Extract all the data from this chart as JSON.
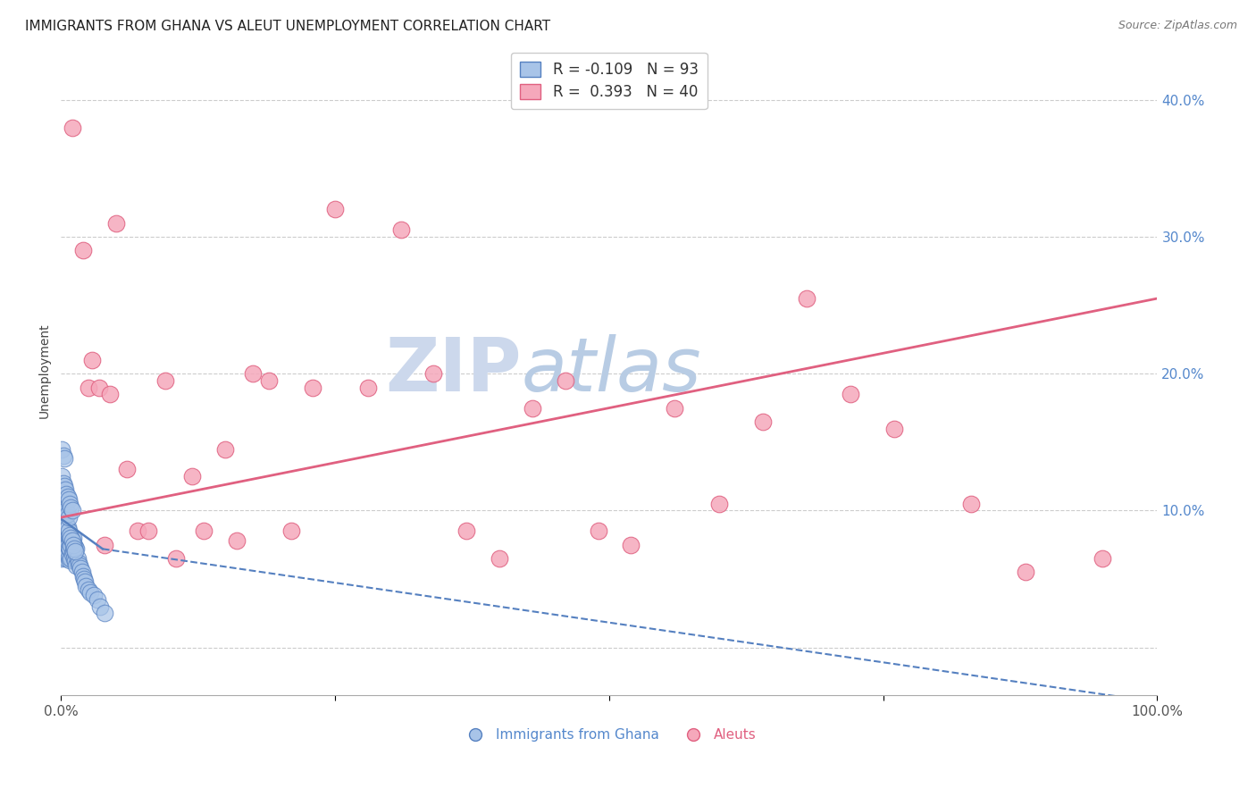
{
  "title": "IMMIGRANTS FROM GHANA VS ALEUT UNEMPLOYMENT CORRELATION CHART",
  "source": "Source: ZipAtlas.com",
  "ylabel": "Unemployment",
  "ytick_values": [
    0.0,
    0.1,
    0.2,
    0.3,
    0.4
  ],
  "xlim": [
    0.0,
    1.0
  ],
  "ylim": [
    -0.035,
    0.44
  ],
  "blue_color": "#a8c4e8",
  "pink_color": "#f5a8bb",
  "blue_edge_color": "#5580c0",
  "pink_edge_color": "#e06080",
  "grid_color": "#cccccc",
  "watermark_color": "#d8e8f5",
  "blue_scatter_x": [
    0.001,
    0.001,
    0.001,
    0.001,
    0.001,
    0.002,
    0.002,
    0.002,
    0.002,
    0.002,
    0.002,
    0.003,
    0.003,
    0.003,
    0.003,
    0.003,
    0.004,
    0.004,
    0.004,
    0.004,
    0.005,
    0.005,
    0.005,
    0.005,
    0.006,
    0.006,
    0.006,
    0.007,
    0.007,
    0.007,
    0.008,
    0.008,
    0.008,
    0.009,
    0.009,
    0.01,
    0.01,
    0.011,
    0.011,
    0.012,
    0.012,
    0.013,
    0.013,
    0.014,
    0.014,
    0.015,
    0.016,
    0.017,
    0.018,
    0.019,
    0.02,
    0.021,
    0.022,
    0.023,
    0.025,
    0.027,
    0.03,
    0.033,
    0.036,
    0.04,
    0.001,
    0.001,
    0.002,
    0.002,
    0.003,
    0.003,
    0.004,
    0.004,
    0.005,
    0.005,
    0.006,
    0.006,
    0.007,
    0.007,
    0.008,
    0.009,
    0.01,
    0.011,
    0.012,
    0.013,
    0.001,
    0.002,
    0.003,
    0.004,
    0.005,
    0.006,
    0.007,
    0.008,
    0.009,
    0.01,
    0.001,
    0.002,
    0.003
  ],
  "blue_scatter_y": [
    0.065,
    0.075,
    0.08,
    0.085,
    0.09,
    0.07,
    0.075,
    0.08,
    0.085,
    0.09,
    0.095,
    0.068,
    0.072,
    0.078,
    0.084,
    0.092,
    0.07,
    0.076,
    0.082,
    0.088,
    0.065,
    0.072,
    0.08,
    0.088,
    0.068,
    0.075,
    0.082,
    0.066,
    0.073,
    0.082,
    0.064,
    0.072,
    0.08,
    0.065,
    0.075,
    0.068,
    0.078,
    0.07,
    0.08,
    0.065,
    0.075,
    0.063,
    0.073,
    0.06,
    0.072,
    0.065,
    0.062,
    0.06,
    0.058,
    0.055,
    0.052,
    0.05,
    0.048,
    0.045,
    0.042,
    0.04,
    0.038,
    0.035,
    0.03,
    0.025,
    0.1,
    0.11,
    0.098,
    0.108,
    0.095,
    0.105,
    0.092,
    0.102,
    0.09,
    0.1,
    0.088,
    0.098,
    0.085,
    0.095,
    0.082,
    0.08,
    0.078,
    0.075,
    0.072,
    0.07,
    0.125,
    0.12,
    0.118,
    0.115,
    0.112,
    0.11,
    0.108,
    0.105,
    0.102,
    0.1,
    0.145,
    0.14,
    0.138
  ],
  "pink_scatter_x": [
    0.01,
    0.02,
    0.025,
    0.028,
    0.035,
    0.04,
    0.045,
    0.05,
    0.06,
    0.07,
    0.08,
    0.095,
    0.105,
    0.12,
    0.13,
    0.15,
    0.16,
    0.175,
    0.19,
    0.21,
    0.23,
    0.25,
    0.28,
    0.31,
    0.34,
    0.37,
    0.4,
    0.43,
    0.46,
    0.49,
    0.52,
    0.56,
    0.6,
    0.64,
    0.68,
    0.72,
    0.76,
    0.83,
    0.88,
    0.95
  ],
  "pink_scatter_y": [
    0.38,
    0.29,
    0.19,
    0.21,
    0.19,
    0.075,
    0.185,
    0.31,
    0.13,
    0.085,
    0.085,
    0.195,
    0.065,
    0.125,
    0.085,
    0.145,
    0.078,
    0.2,
    0.195,
    0.085,
    0.19,
    0.32,
    0.19,
    0.305,
    0.2,
    0.085,
    0.065,
    0.175,
    0.195,
    0.085,
    0.075,
    0.175,
    0.105,
    0.165,
    0.255,
    0.185,
    0.16,
    0.105,
    0.055,
    0.065
  ],
  "blue_trend_x": [
    0.0,
    0.038,
    1.0
  ],
  "blue_trend_y": [
    0.094,
    0.072,
    -0.04
  ],
  "blue_trend_solid_end": 0.038,
  "pink_trend_x": [
    0.0,
    1.0
  ],
  "pink_trend_y": [
    0.095,
    0.255
  ],
  "title_fontsize": 11,
  "axis_label_fontsize": 10,
  "tick_fontsize": 11,
  "legend_fontsize": 12,
  "watermark_fontsize": 60
}
